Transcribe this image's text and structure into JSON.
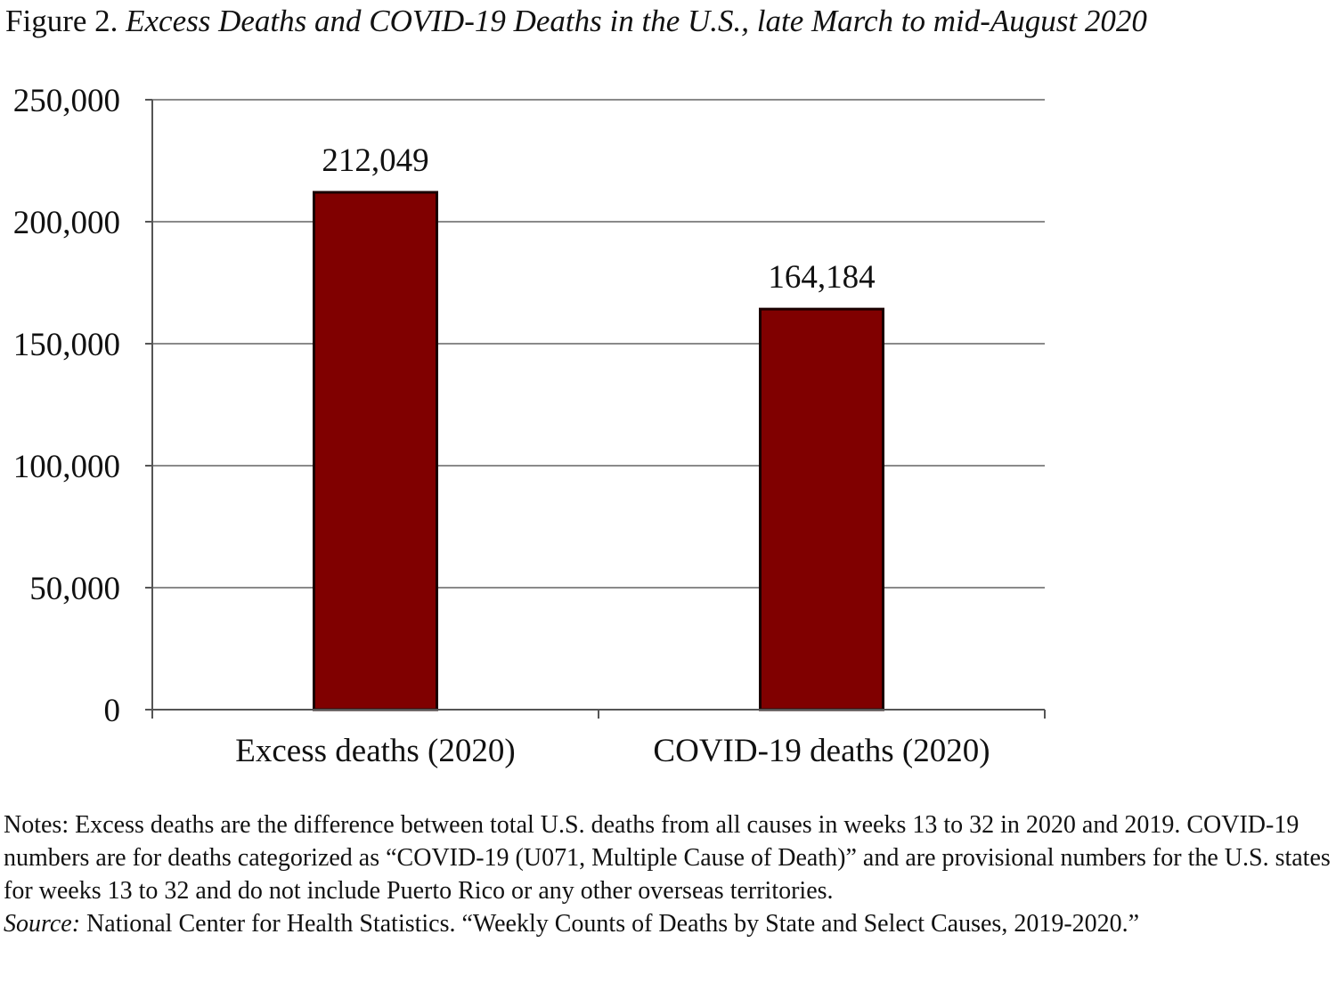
{
  "figure": {
    "label": "Figure 2.",
    "title": "Excess Deaths and COVID-19 Deaths in the U.S., late March to mid-August 2020"
  },
  "chart_data": {
    "type": "bar",
    "categories": [
      "Excess deaths (2020)",
      "COVID-19 deaths (2020)"
    ],
    "values": [
      212049,
      164184
    ],
    "data_labels": [
      "212,049",
      "164,184"
    ],
    "ylim": [
      0,
      250000
    ],
    "yticks": [
      0,
      50000,
      100000,
      150000,
      200000,
      250000
    ],
    "ytick_labels": [
      "0",
      "50,000",
      "100,000",
      "150,000",
      "200,000",
      "250,000"
    ],
    "xlabel": "",
    "ylabel": "",
    "grid": true,
    "legend": "none",
    "bar_color": "#800000",
    "grid_color": "#8a8a8a"
  },
  "notes": {
    "text": "Notes: Excess deaths are the difference between total U.S. deaths from all causes in weeks 13 to 32 in 2020 and 2019.  COVID-19 numbers are for deaths categorized as “COVID-19 (U071, Multiple Cause of Death)” and are provisional numbers for the U.S. states for weeks 13 to 32 and do not include Puerto Rico or any other overseas territories.",
    "source_label": "Source:",
    "source_text": "National Center for Health Statistics. “Weekly Counts of Deaths by State and Select Causes, 2019-2020.”"
  }
}
